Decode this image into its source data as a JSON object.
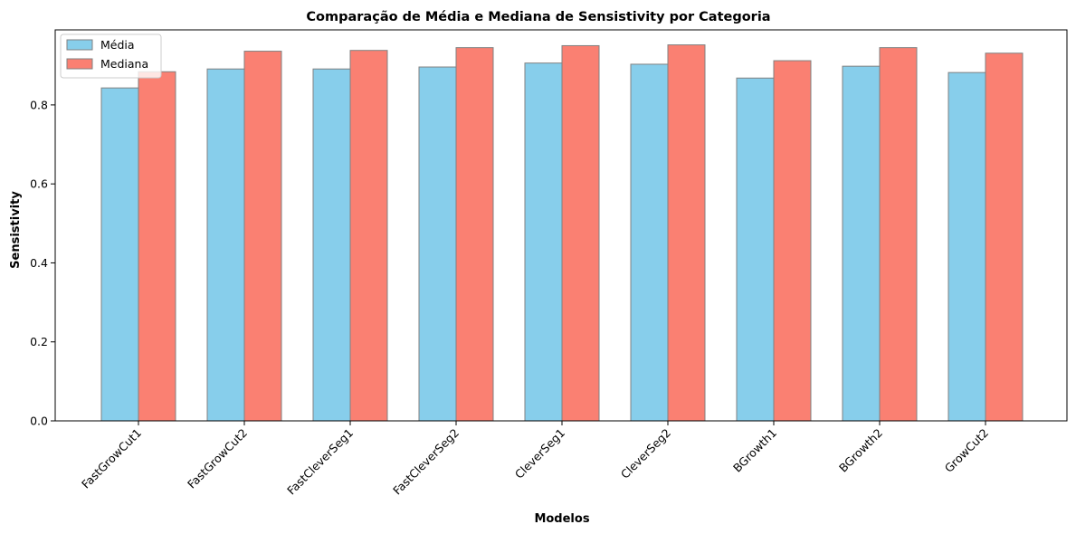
{
  "chart_data": {
    "type": "bar",
    "title": "Comparação de Média e Mediana de Sensistivity por Categoria",
    "xlabel": "Modelos",
    "ylabel": "Sensistivity",
    "categories": [
      "FastGrowCut1",
      "FastGrowCut2",
      "FastCleverSeg1",
      "FastCleverSeg2",
      "CleverSeg1",
      "CleverSeg2",
      "BGrowth1",
      "BGrowth2",
      "GrowCut2"
    ],
    "series": [
      {
        "name": "Média",
        "color": "#87CEEB",
        "values": [
          0.843,
          0.891,
          0.891,
          0.896,
          0.906,
          0.903,
          0.868,
          0.898,
          0.882
        ]
      },
      {
        "name": "Mediana",
        "color": "#FA8072",
        "values": [
          0.884,
          0.936,
          0.938,
          0.945,
          0.95,
          0.952,
          0.912,
          0.945,
          0.931
        ]
      }
    ],
    "ylim": [
      0,
      0.99
    ],
    "yticks": [
      0.0,
      0.2,
      0.4,
      0.6,
      0.8
    ],
    "ytick_labels": [
      "0.0",
      "0.2",
      "0.4",
      "0.6",
      "0.8"
    ],
    "legend_position": "top-left",
    "grid": false,
    "bar_edge_color": "#808080"
  }
}
